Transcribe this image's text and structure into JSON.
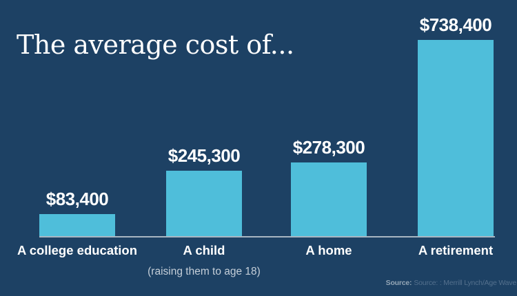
{
  "title": "The average cost of...",
  "colors": {
    "background": "#1D4164",
    "bar": "#4FBEDA",
    "baseline": "#A9B6C2",
    "text": "#FFFFFF",
    "subtitle": "#C5CFD9",
    "source_label": "#94A6B6",
    "source_text": "#54708D"
  },
  "chart_data": {
    "type": "bar",
    "title": "The average cost of...",
    "categories": [
      "A college education",
      "A child",
      "A home",
      "A retirement"
    ],
    "values": [
      83400,
      245300,
      278300,
      738400
    ],
    "value_labels": [
      "$83,400",
      "$245,300",
      "$278,300",
      "$738,400"
    ],
    "xlabel": "",
    "ylabel": "",
    "ylim": [
      0,
      738400
    ],
    "grid": false,
    "legend": "none",
    "note": "(raising them to age 18)",
    "note_category_index": 1
  },
  "source": {
    "label": "Source:",
    "text": "Source: : Merrill Lynch/Age Wave"
  }
}
